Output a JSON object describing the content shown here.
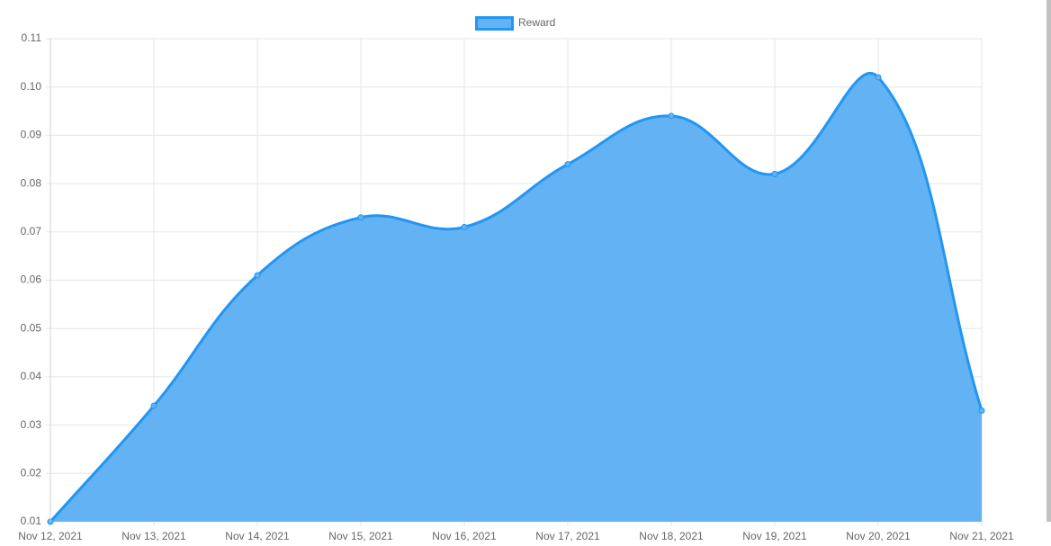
{
  "chart_data": {
    "type": "area",
    "categories": [
      "Nov 12, 2021",
      "Nov 13, 2021",
      "Nov 14, 2021",
      "Nov 15, 2021",
      "Nov 16, 2021",
      "Nov 17, 2021",
      "Nov 18, 2021",
      "Nov 19, 2021",
      "Nov 20, 2021",
      "Nov 21, 2021"
    ],
    "series": [
      {
        "name": "Reward",
        "color": "#2196f3",
        "fill": "#63b3f4",
        "values": [
          0.01,
          0.034,
          0.061,
          0.073,
          0.071,
          0.084,
          0.094,
          0.082,
          0.102,
          0.033
        ]
      }
    ],
    "ylim": [
      0.01,
      0.11
    ],
    "yticks": [
      0.01,
      0.02,
      0.03,
      0.04,
      0.05,
      0.06,
      0.07,
      0.08,
      0.09,
      {
        "value": 0.1,
        "label": "0.10"
      },
      0.11
    ],
    "grid": true,
    "legend": "top"
  }
}
